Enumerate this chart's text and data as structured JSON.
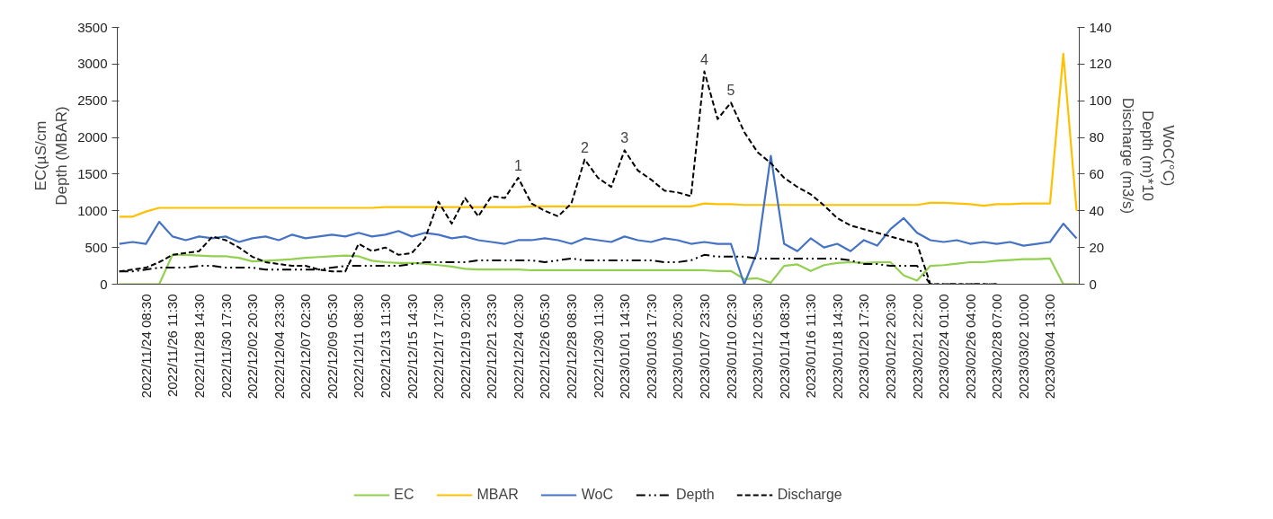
{
  "chart_data": {
    "type": "line",
    "ylabel": "EC(µS/cm\nDepth (MBAR)",
    "y2label": "WoC(°C)\nDepth (m)*10\nDischarge (m3/s)",
    "categories": [
      null,
      null,
      "2022/11/24 08:30",
      null,
      "2022/11/26 11:30",
      null,
      "2022/11/28 14:30",
      null,
      "2022/11/30 17:30",
      null,
      "2022/12/02 20:30",
      null,
      "2022/12/04 23:30",
      null,
      "2022/12/07 02:30",
      null,
      "2022/12/09 05:30",
      null,
      "2022/12/11 08:30",
      null,
      "2022/12/13 11:30",
      null,
      "2022/12/15 14:30",
      null,
      "2022/12/17 17:30",
      null,
      "2022/12/19 20:30",
      null,
      "2022/12/21 23:30",
      null,
      "2022/12/24 02:30",
      null,
      "2022/12/26 05:30",
      null,
      "2022/12/28 08:30",
      null,
      "2022/12/30 11:30",
      null,
      "2023/01/01 14:30",
      null,
      "2023/01/03 17:30",
      null,
      "2023/01/05 20:30",
      null,
      "2023/01/07 23:30",
      null,
      "2023/01/10 02:30",
      null,
      "2023/01/12 05:30",
      null,
      "2023/01/14 08:30",
      null,
      "2023/01/16 11:30",
      null,
      "2023/01/18 14:30",
      null,
      "2023/01/20 17:30",
      null,
      "2023/01/22 20:30",
      null,
      "2023/02/21 22:00",
      null,
      "2023/02/24 01:00",
      null,
      "2023/02/26 04:00",
      null,
      "2023/02/28 07:00",
      null,
      "2023/03/02 10:00",
      null,
      "2023/03/04 13:00",
      null,
      null
    ],
    "ylim": [
      0,
      3500
    ],
    "yticks": [
      0,
      500,
      1000,
      1500,
      2000,
      2500,
      3000,
      3500
    ],
    "y2lim": [
      0,
      140
    ],
    "y2ticks": [
      0,
      20,
      40,
      60,
      80,
      100,
      120,
      140
    ],
    "grid": false,
    "legend": "bottom",
    "series": [
      {
        "name": "EC",
        "color": "#92d050",
        "line_style": "solid",
        "values": [
          0,
          0,
          0,
          0,
          400,
          400,
          390,
          380,
          380,
          360,
          310,
          320,
          330,
          340,
          360,
          370,
          380,
          390,
          380,
          320,
          300,
          290,
          290,
          280,
          260,
          240,
          210,
          200,
          200,
          200,
          200,
          190,
          190,
          190,
          190,
          190,
          190,
          190,
          190,
          190,
          190,
          190,
          190,
          190,
          190,
          180,
          180,
          70,
          80,
          20,
          250,
          270,
          180,
          260,
          290,
          300,
          290,
          300,
          300,
          120,
          50,
          250,
          260,
          280,
          300,
          300,
          320,
          330,
          340,
          340,
          350,
          0,
          0
        ]
      },
      {
        "name": "MBAR",
        "color": "#ffc000",
        "line_style": "solid",
        "values": [
          920,
          920,
          990,
          1040,
          1040,
          1040,
          1040,
          1040,
          1040,
          1040,
          1040,
          1040,
          1040,
          1040,
          1040,
          1040,
          1040,
          1040,
          1040,
          1040,
          1050,
          1050,
          1050,
          1050,
          1050,
          1050,
          1050,
          1050,
          1050,
          1050,
          1050,
          1060,
          1060,
          1060,
          1060,
          1060,
          1060,
          1060,
          1060,
          1060,
          1060,
          1060,
          1060,
          1060,
          1100,
          1090,
          1090,
          1080,
          1080,
          1080,
          1080,
          1080,
          1080,
          1080,
          1080,
          1080,
          1080,
          1080,
          1080,
          1080,
          1080,
          1110,
          1110,
          1100,
          1090,
          1070,
          1090,
          1090,
          1100,
          1100,
          1100,
          3140,
          1000
        ]
      },
      {
        "name": "WoC",
        "color": "#4472c4",
        "axis": "y2",
        "line_style": "solid",
        "values": [
          22,
          23,
          22,
          34,
          26,
          24,
          26,
          25,
          26,
          23,
          25,
          26,
          24,
          27,
          25,
          26,
          27,
          26,
          28,
          26,
          27,
          29,
          26,
          28,
          27,
          25,
          26,
          24,
          23,
          22,
          24,
          24,
          25,
          24,
          22,
          25,
          24,
          23,
          26,
          24,
          23,
          25,
          24,
          22,
          23,
          22,
          22,
          0,
          18,
          70,
          22,
          18,
          25,
          20,
          22,
          18,
          24,
          21,
          30,
          36,
          28,
          24,
          23,
          24,
          22,
          23,
          22,
          23,
          21,
          22,
          23,
          33,
          25
        ]
      },
      {
        "name": "Depth",
        "color": "#000000",
        "axis": "y2",
        "line_style": "dotted",
        "values": [
          7,
          7,
          8,
          9,
          9,
          9,
          10,
          10,
          9,
          9,
          9,
          8,
          8,
          8,
          8,
          8,
          9,
          10,
          10,
          10,
          10,
          10,
          11,
          12,
          12,
          12,
          12,
          13,
          13,
          13,
          13,
          13,
          12,
          13,
          14,
          13,
          13,
          13,
          13,
          13,
          13,
          12,
          12,
          13,
          16,
          15,
          15,
          15,
          14,
          14,
          14,
          14,
          14,
          14,
          14,
          13,
          11,
          11,
          10,
          10,
          10,
          0,
          0,
          0,
          0,
          0,
          0,
          null,
          null,
          null,
          null,
          null,
          null
        ]
      },
      {
        "name": "Discharge",
        "color": "#000000",
        "axis": "y2",
        "line_style": "dashed",
        "values": [
          7,
          8,
          9,
          12,
          16,
          17,
          18,
          26,
          24,
          20,
          15,
          12,
          11,
          10,
          10,
          8,
          7,
          7,
          22,
          18,
          20,
          16,
          17,
          25,
          45,
          33,
          47,
          37,
          48,
          47,
          58,
          44,
          40,
          37,
          44,
          68,
          58,
          53,
          73,
          62,
          57,
          51,
          50,
          48,
          116,
          90,
          99,
          83,
          72,
          66,
          58,
          53,
          49,
          43,
          36,
          32,
          30,
          28,
          26,
          24,
          22,
          0,
          0,
          0,
          0,
          0,
          0,
          null,
          null,
          null,
          null,
          null,
          null
        ]
      }
    ],
    "annotations": [
      "1",
      "2",
      "3",
      "4",
      "5"
    ]
  }
}
